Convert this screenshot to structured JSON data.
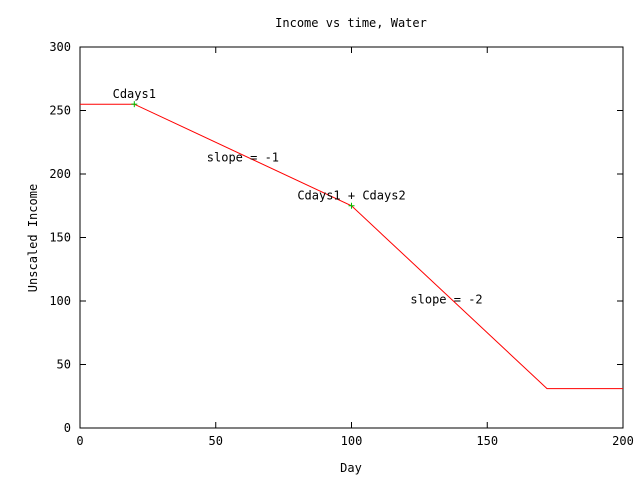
{
  "chart_data": {
    "type": "line",
    "title": "Income vs time, Water",
    "xlabel": "Day",
    "ylabel": "Unscaled Income",
    "xlim": [
      0,
      200
    ],
    "ylim": [
      0,
      300
    ],
    "x_ticks": [
      0,
      50,
      100,
      150,
      200
    ],
    "y_ticks": [
      0,
      50,
      100,
      150,
      200,
      250,
      300
    ],
    "grid": false,
    "legend": "none",
    "series": [
      {
        "color": "#ff0000",
        "x": [
          0,
          20,
          100,
          172,
          200
        ],
        "y": [
          255,
          255,
          175,
          31,
          31
        ]
      }
    ],
    "markers": [
      {
        "x": 20,
        "y": 255,
        "color": "#00c000"
      },
      {
        "x": 100,
        "y": 175,
        "color": "#00c000"
      }
    ],
    "annotations": [
      {
        "text": "Cdays1",
        "x": 20,
        "y": 263
      },
      {
        "text": "slope = -1",
        "x": 60,
        "y": 213
      },
      {
        "text": "Cdays1 + Cdays2",
        "x": 100,
        "y": 183
      },
      {
        "text": "slope = -2",
        "x": 135,
        "y": 101
      }
    ]
  }
}
